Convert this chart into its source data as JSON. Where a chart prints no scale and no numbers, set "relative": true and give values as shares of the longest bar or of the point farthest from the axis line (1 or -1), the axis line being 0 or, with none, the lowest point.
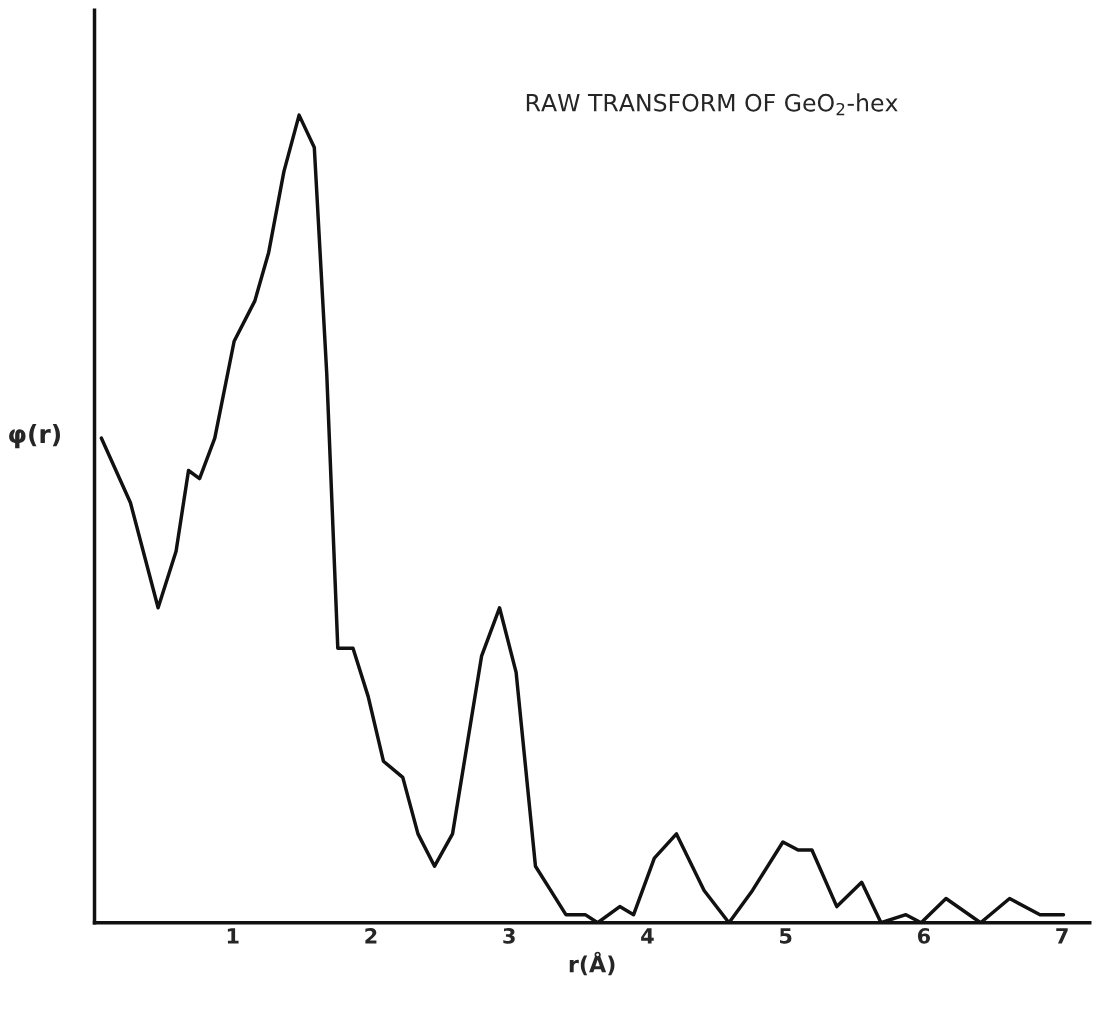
{
  "chart_data": {
    "type": "line",
    "title": "RAW TRANSFORM OF GeO$_{2}$-hex",
    "xlabel": "r(Å)",
    "ylabel": "φ(r)",
    "relative": true,
    "xlim": [
      0,
      7.2
    ],
    "xticks": [
      1,
      2,
      3,
      4,
      5,
      6,
      7
    ],
    "grid": false,
    "legend": false,
    "marker": "none",
    "line_style": "solid",
    "series": [
      {
        "color": "#111111",
        "x": [
          0.05,
          0.26,
          0.46,
          0.59,
          0.68,
          0.76,
          0.87,
          1.01,
          1.16,
          1.26,
          1.37,
          1.48,
          1.59,
          1.68,
          1.76,
          1.87,
          1.98,
          2.09,
          2.23,
          2.34,
          2.46,
          2.59,
          2.8,
          2.93,
          3.05,
          3.19,
          3.3,
          3.41,
          3.55,
          3.64,
          3.8,
          3.9,
          4.05,
          4.21,
          4.41,
          4.59,
          4.76,
          4.98,
          5.09,
          5.19,
          5.37,
          5.55,
          5.69,
          5.87,
          5.98,
          6.16,
          6.41,
          6.62,
          6.84,
          7.01
        ],
        "values": [
          0.6,
          0.52,
          0.39,
          0.46,
          0.56,
          0.55,
          0.6,
          0.72,
          0.77,
          0.83,
          0.93,
          1.0,
          0.96,
          0.68,
          0.34,
          0.34,
          0.28,
          0.2,
          0.18,
          0.11,
          0.07,
          0.11,
          0.33,
          0.39,
          0.31,
          0.07,
          0.04,
          0.01,
          0.01,
          0.0,
          0.02,
          0.01,
          0.08,
          0.11,
          0.04,
          0.0,
          0.04,
          0.1,
          0.09,
          0.09,
          0.02,
          0.05,
          0.0,
          0.01,
          0.0,
          0.03,
          0.0,
          0.03,
          0.01,
          0.01
        ]
      }
    ]
  }
}
